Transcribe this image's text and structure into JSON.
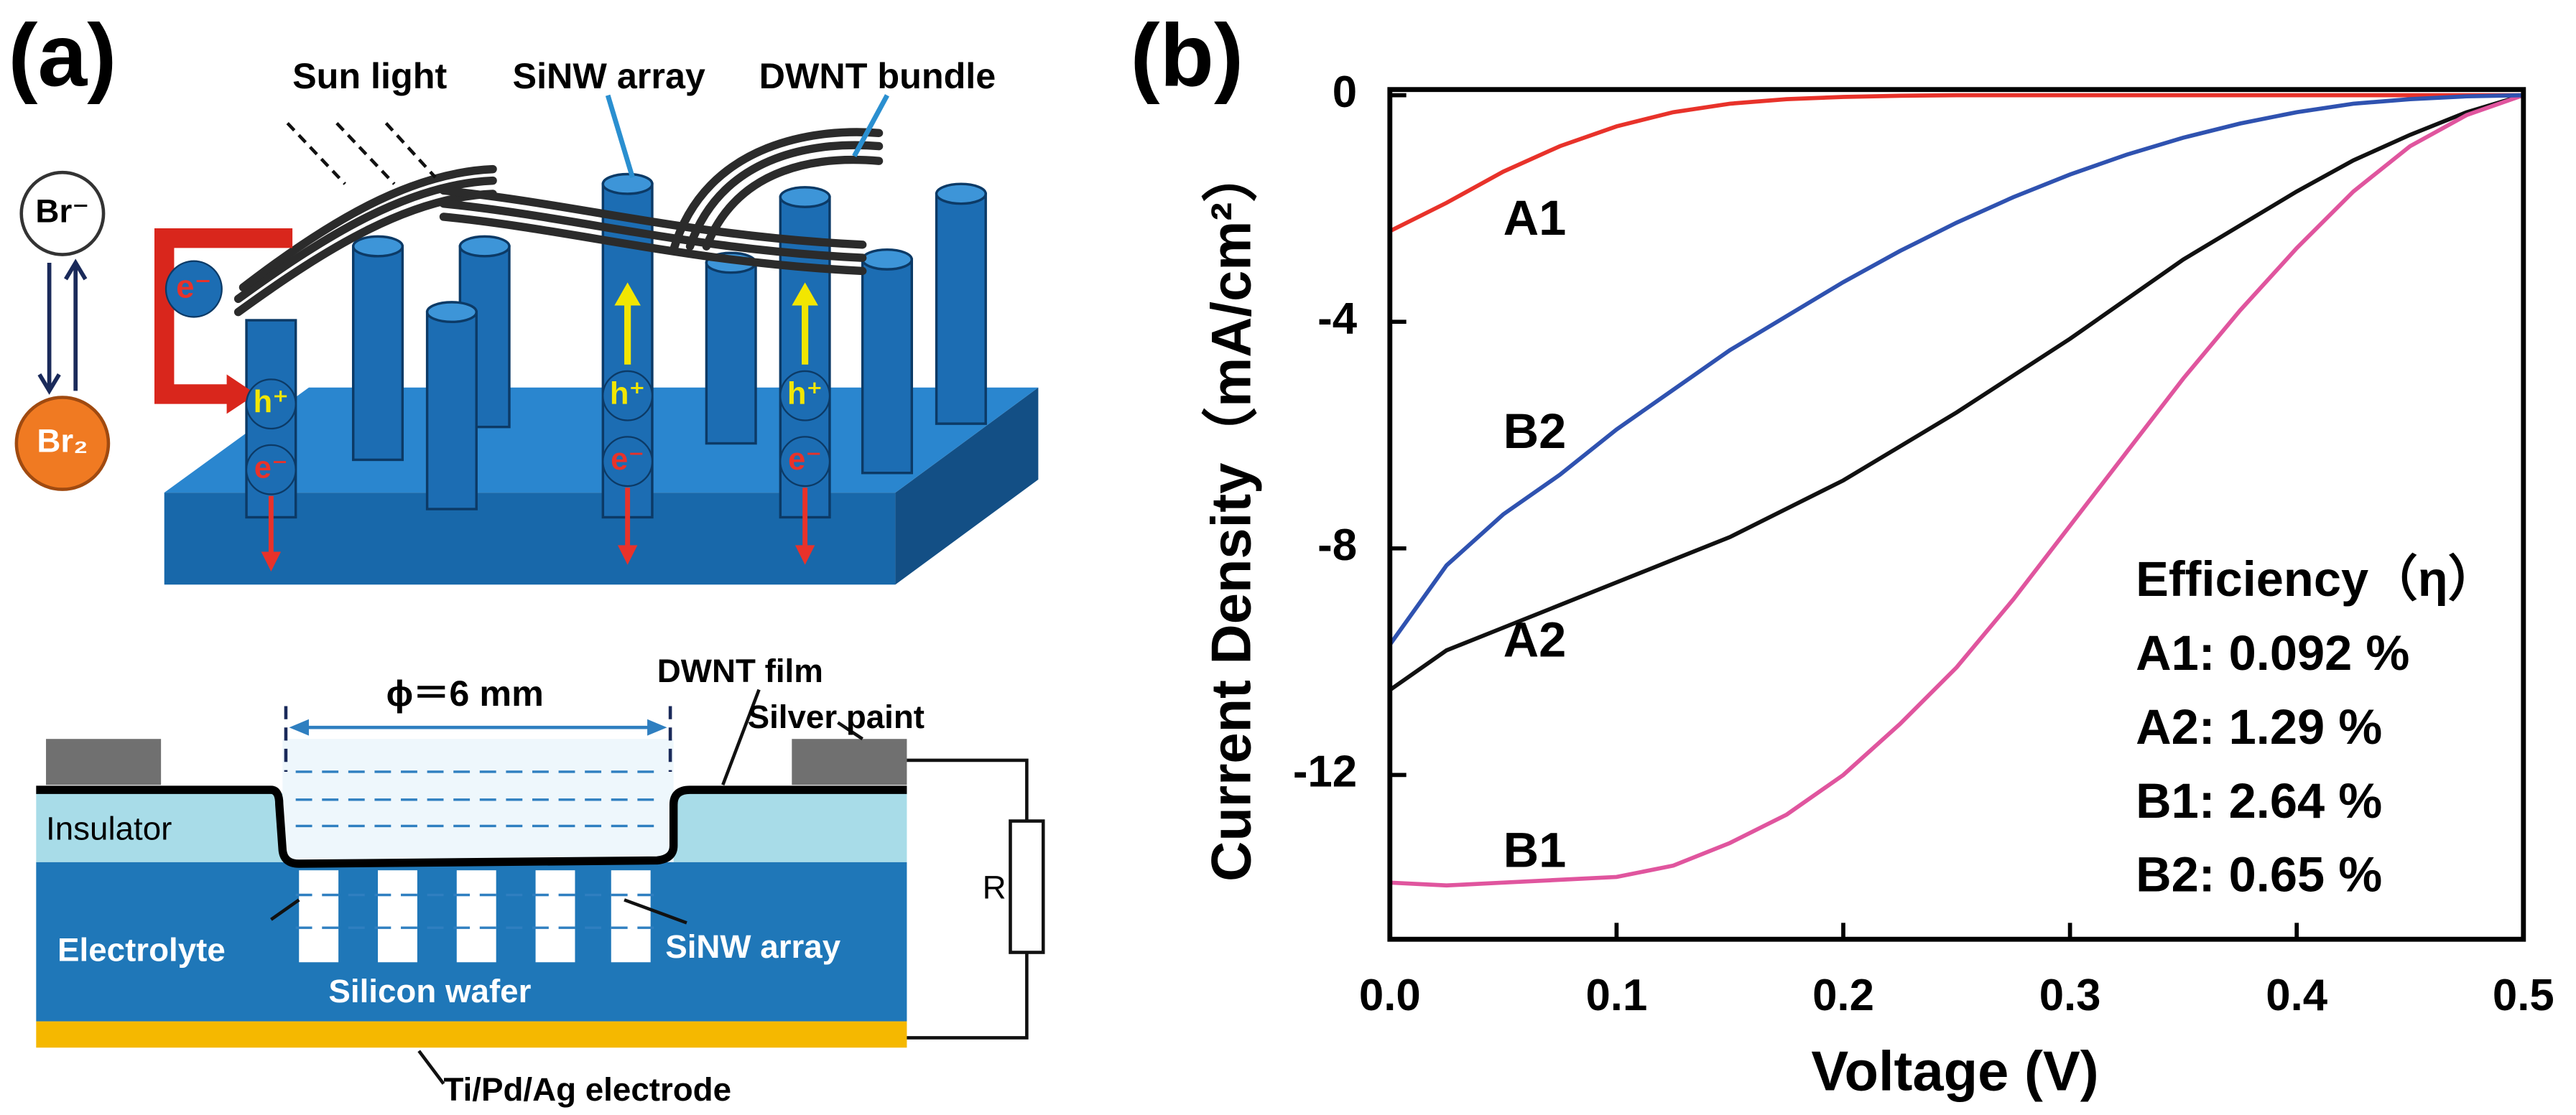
{
  "panel_a": {
    "label": "(a)",
    "sun_light": "Sun light",
    "sinw_array_top": "SiNW array",
    "dwnt_bundle": "DWNT bundle",
    "br_ion": "Br⁻",
    "br2": "Br₂",
    "electron": "e⁻",
    "hole": "h⁺",
    "diameter": "ϕ＝6 mm",
    "dwnt_film": "DWNT film",
    "silver_paint": "Silver paint",
    "insulator": "Insulator",
    "electrolyte": "Electrolyte",
    "sinw_array_bottom": "SiNW array",
    "silicon_wafer": "Silicon wafer",
    "resistor": "R",
    "electrode": "Ti/Pd/Ag electrode"
  },
  "chart_data": {
    "type": "line",
    "panel_label": "(b)",
    "x_label": "Voltage (V)",
    "y_label": "Current Density（mA/cm²）",
    "x": [
      0,
      0.025,
      0.05,
      0.075,
      0.1,
      0.125,
      0.15,
      0.175,
      0.2,
      0.225,
      0.25,
      0.275,
      0.3,
      0.325,
      0.35,
      0.375,
      0.4,
      0.425,
      0.45,
      0.475,
      0.5
    ],
    "series": [
      {
        "name": "A1",
        "color": "#e8322a",
        "values": [
          -2.4,
          -1.9,
          -1.35,
          -0.9,
          -0.55,
          -0.3,
          -0.15,
          -0.07,
          -0.03,
          -0.01,
          0,
          0,
          0,
          0,
          0,
          0,
          0,
          0,
          0,
          0,
          0
        ]
      },
      {
        "name": "A2",
        "color": "#111111",
        "values": [
          -10.5,
          -9.8,
          -9.4,
          -9.0,
          -8.6,
          -8.2,
          -7.8,
          -7.3,
          -6.8,
          -6.2,
          -5.6,
          -4.95,
          -4.3,
          -3.6,
          -2.9,
          -2.3,
          -1.7,
          -1.15,
          -0.7,
          -0.3,
          0
        ]
      },
      {
        "name": "B1",
        "color": "#e0559e",
        "values": [
          -13.9,
          -13.95,
          -13.9,
          -13.85,
          -13.8,
          -13.6,
          -13.2,
          -12.7,
          -12.0,
          -11.1,
          -10.1,
          -8.9,
          -7.6,
          -6.3,
          -5.0,
          -3.8,
          -2.7,
          -1.7,
          -0.9,
          -0.35,
          0
        ]
      },
      {
        "name": "B2",
        "color": "#2f52b0",
        "values": [
          -9.7,
          -8.3,
          -7.4,
          -6.7,
          -5.9,
          -5.2,
          -4.5,
          -3.9,
          -3.3,
          -2.75,
          -2.25,
          -1.8,
          -1.4,
          -1.05,
          -0.75,
          -0.5,
          -0.3,
          -0.15,
          -0.07,
          -0.02,
          0
        ]
      }
    ],
    "xlim": [
      0,
      0.5
    ],
    "xticks": [
      {
        "value": 0,
        "label": "0.0"
      },
      0.1,
      0.2,
      0.3,
      0.4,
      0.5
    ],
    "ylim": [
      -14.9,
      0.1
    ],
    "yticks": [
      0,
      -4,
      -8,
      -12
    ],
    "efficiency": {
      "title": "Efficiency（η）",
      "entries": [
        "A1: 0.092 %",
        "A2: 1.29 %",
        "B1: 2.64 %",
        "B2: 0.65 %"
      ]
    }
  }
}
